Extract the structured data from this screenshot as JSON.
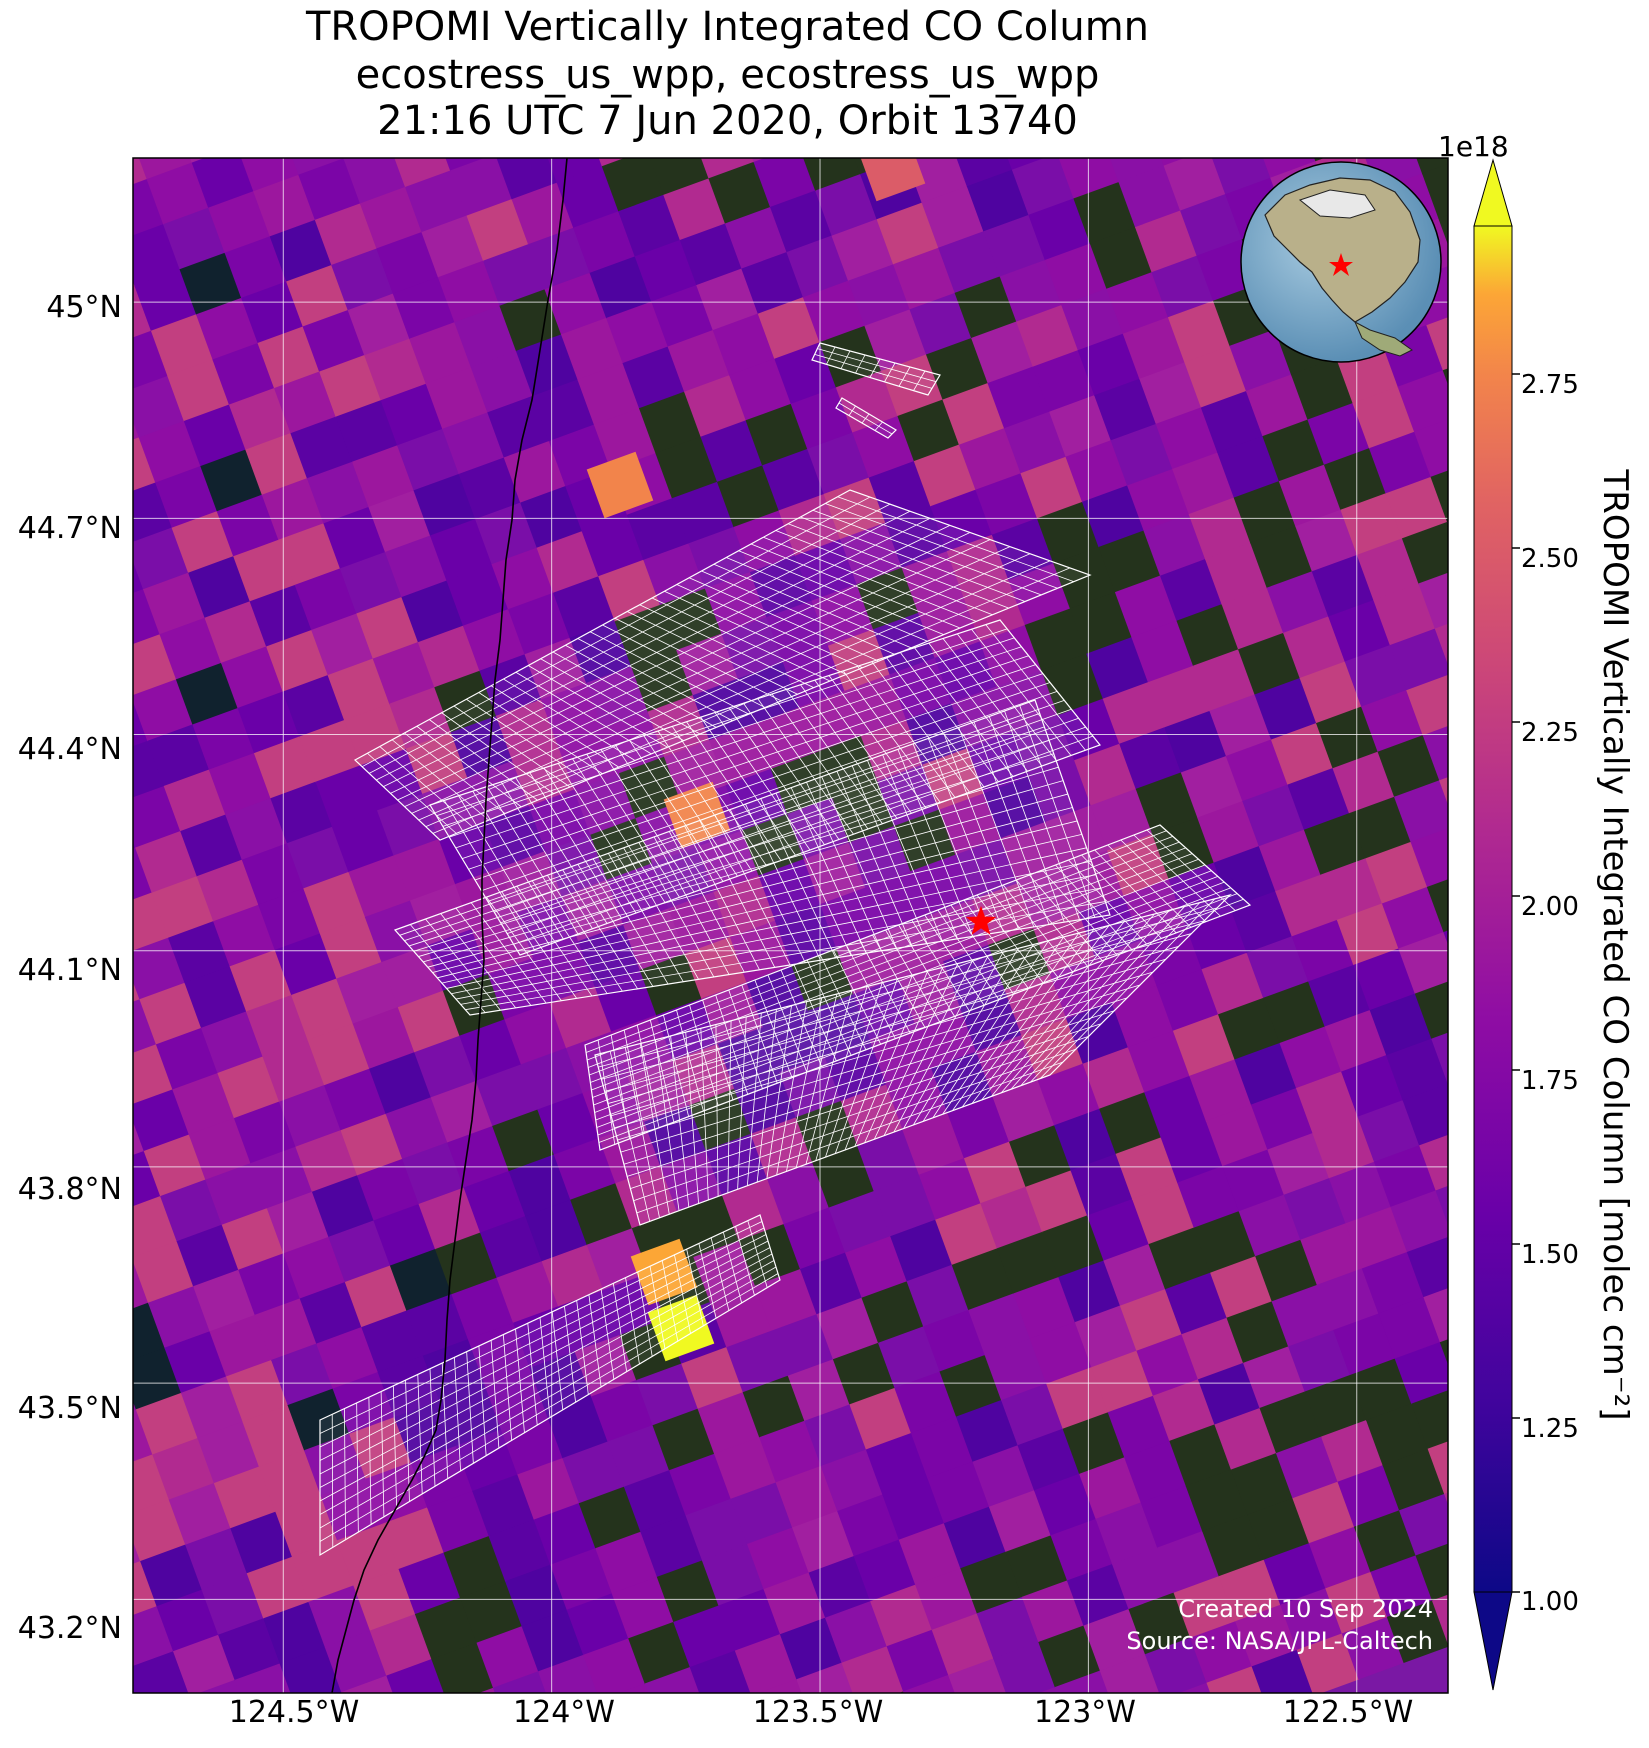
{
  "title": {
    "line1": "TROPOMI Vertically Integrated CO Column",
    "line2": "ecostress_us_wpp, ecostress_us_wpp",
    "line3": "21:16 UTC 7 Jun 2020, Orbit 13740"
  },
  "axes": {
    "lat_ticks": [
      "45°N",
      "44.7°N",
      "44.4°N",
      "44.1°N",
      "43.8°N",
      "43.5°N",
      "43.2°N"
    ],
    "lat_values": [
      45.0,
      44.7,
      44.4,
      44.1,
      43.8,
      43.5,
      43.2
    ],
    "lon_ticks": [
      "124.5°W",
      "124°W",
      "123.5°W",
      "123°W",
      "122.5°W"
    ],
    "lon_values": [
      -124.5,
      -124.0,
      -123.5,
      -123.0,
      -122.5
    ],
    "lat_range": [
      43.07,
      45.2
    ],
    "lon_range": [
      -124.78,
      -122.33
    ],
    "grid": true
  },
  "colorbar": {
    "label": "TROPOMI Vertically Integrated CO Column [molec cm⁻²]",
    "exponent": "1e18",
    "ticks": [
      "1.00",
      "1.25",
      "1.50",
      "1.75",
      "2.00",
      "2.25",
      "2.50",
      "2.75"
    ],
    "tick_values": [
      1.0,
      1.25,
      1.5,
      1.75,
      2.0,
      2.25,
      2.5,
      2.75
    ],
    "range": [
      0.95,
      2.9
    ],
    "colormap": "plasma",
    "extend": "both"
  },
  "marker": {
    "type": "red-star",
    "lat": 44.14,
    "lon": -123.2,
    "color": "#ff0000"
  },
  "inset": {
    "type": "globe",
    "marker": "red-star"
  },
  "credits": {
    "created": "Created 10 Sep 2024",
    "source": "Source: NASA/JPL-Caltech"
  },
  "colors": {
    "plasma": [
      "#0d0887",
      "#5302a3",
      "#8b0aa5",
      "#b83289",
      "#db5c68",
      "#f48849",
      "#febd2a",
      "#f0f921"
    ]
  }
}
